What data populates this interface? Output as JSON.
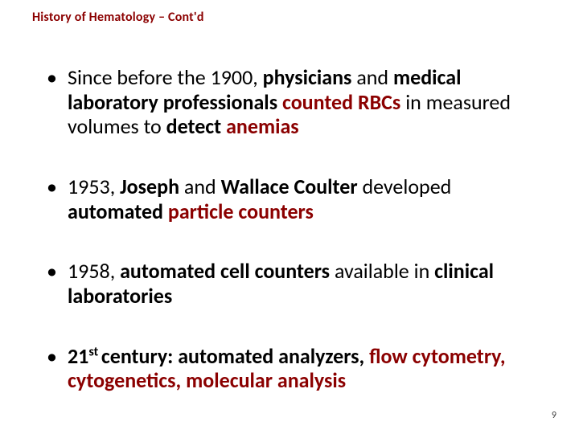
{
  "title": {
    "text": "History of Hematology – Cont'd",
    "color": "#8b0000",
    "fontsize": 16
  },
  "colors": {
    "accent": "#8b0000",
    "text": "#000000",
    "background": "#ffffff",
    "pagenum": "#404040"
  },
  "body_fontsize": 26,
  "bullets": [
    {
      "runs": [
        {
          "t": "Since before the 1900, ",
          "b": false,
          "c": "#000000"
        },
        {
          "t": "physicians",
          "b": true,
          "c": "#000000"
        },
        {
          "t": " and ",
          "b": false,
          "c": "#000000"
        },
        {
          "t": "medical laboratory professionals ",
          "b": true,
          "c": "#000000"
        },
        {
          "t": "counted RBCs",
          "b": true,
          "c": "#8b0000"
        },
        {
          "t": " in measured volumes to ",
          "b": false,
          "c": "#000000"
        },
        {
          "t": "detect ",
          "b": true,
          "c": "#000000"
        },
        {
          "t": "anemias",
          "b": true,
          "c": "#8b0000"
        }
      ]
    },
    {
      "runs": [
        {
          "t": "1953, ",
          "b": false,
          "c": "#000000"
        },
        {
          "t": "Joseph",
          "b": true,
          "c": "#000000"
        },
        {
          "t": " and ",
          "b": false,
          "c": "#000000"
        },
        {
          "t": "Wallace Coulter",
          "b": true,
          "c": "#000000"
        },
        {
          "t": " developed ",
          "b": false,
          "c": "#000000"
        },
        {
          "t": "automated ",
          "b": true,
          "c": "#000000"
        },
        {
          "t": "particle counters",
          "b": true,
          "c": "#8b0000"
        }
      ]
    },
    {
      "runs": [
        {
          "t": "1958, ",
          "b": false,
          "c": "#000000"
        },
        {
          "t": "automated cell counters",
          "b": true,
          "c": "#000000"
        },
        {
          "t": " available in ",
          "b": false,
          "c": "#000000"
        },
        {
          "t": "clinical laboratories",
          "b": true,
          "c": "#000000"
        }
      ]
    },
    {
      "runs": [
        {
          "t": "21",
          "b": true,
          "c": "#000000"
        },
        {
          "t": "st ",
          "b": true,
          "c": "#000000",
          "sup": true
        },
        {
          "t": "century: ",
          "b": true,
          "c": "#000000"
        },
        {
          "t": "automated analyzers, ",
          "b": true,
          "c": "#000000"
        },
        {
          "t": "flow cytometry, cytogenetics, molecular analysis",
          "b": true,
          "c": "#8b0000"
        }
      ]
    }
  ],
  "page_number": {
    "value": "9",
    "fontsize": 12
  }
}
